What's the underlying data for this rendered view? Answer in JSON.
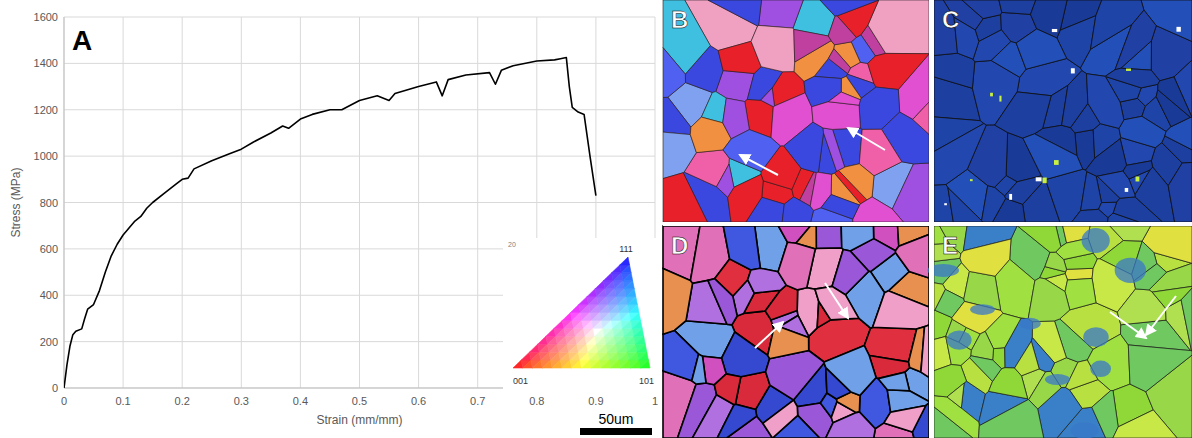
{
  "chart_data": {
    "type": "line",
    "x_label": "Strain (mm/mm)",
    "y_label": "Stress (MPa)",
    "xlim": [
      0,
      1
    ],
    "ylim": [
      0,
      1600
    ],
    "xticks": [
      0,
      0.1,
      0.2,
      0.3,
      0.4,
      0.5,
      0.6,
      0.7,
      0.8,
      0.9,
      1
    ],
    "yticks": [
      0,
      200,
      400,
      600,
      800,
      1000,
      1200,
      1400,
      1600
    ],
    "grid": true,
    "series": [
      {
        "color": "#000000",
        "x": [
          0,
          0.005,
          0.01,
          0.015,
          0.02,
          0.03,
          0.035,
          0.04,
          0.05,
          0.06,
          0.07,
          0.08,
          0.09,
          0.1,
          0.11,
          0.12,
          0.13,
          0.14,
          0.15,
          0.17,
          0.19,
          0.2,
          0.21,
          0.22,
          0.25,
          0.28,
          0.3,
          0.32,
          0.35,
          0.37,
          0.38,
          0.4,
          0.42,
          0.45,
          0.47,
          0.5,
          0.53,
          0.55,
          0.56,
          0.6,
          0.63,
          0.64,
          0.65,
          0.68,
          0.72,
          0.73,
          0.74,
          0.76,
          0.8,
          0.83,
          0.84,
          0.85,
          0.855,
          0.86,
          0.87,
          0.88,
          0.89,
          0.9
        ],
        "values": [
          0,
          100,
          180,
          230,
          245,
          255,
          300,
          340,
          360,
          420,
          500,
          570,
          620,
          660,
          690,
          720,
          740,
          775,
          800,
          840,
          880,
          900,
          905,
          945,
          980,
          1010,
          1030,
          1060,
          1100,
          1130,
          1120,
          1160,
          1180,
          1200,
          1200,
          1240,
          1260,
          1240,
          1270,
          1300,
          1320,
          1260,
          1330,
          1350,
          1360,
          1310,
          1370,
          1390,
          1410,
          1415,
          1420,
          1425,
          1300,
          1210,
          1190,
          1180,
          1000,
          830
        ]
      }
    ]
  },
  "figure": {
    "panel_labels": [
      "A",
      "B",
      "C",
      "D",
      "E"
    ],
    "color_key": {
      "top_label": "20",
      "corner_labels": [
        "001",
        "101",
        "111"
      ]
    },
    "scale_bar_label": "50um"
  }
}
